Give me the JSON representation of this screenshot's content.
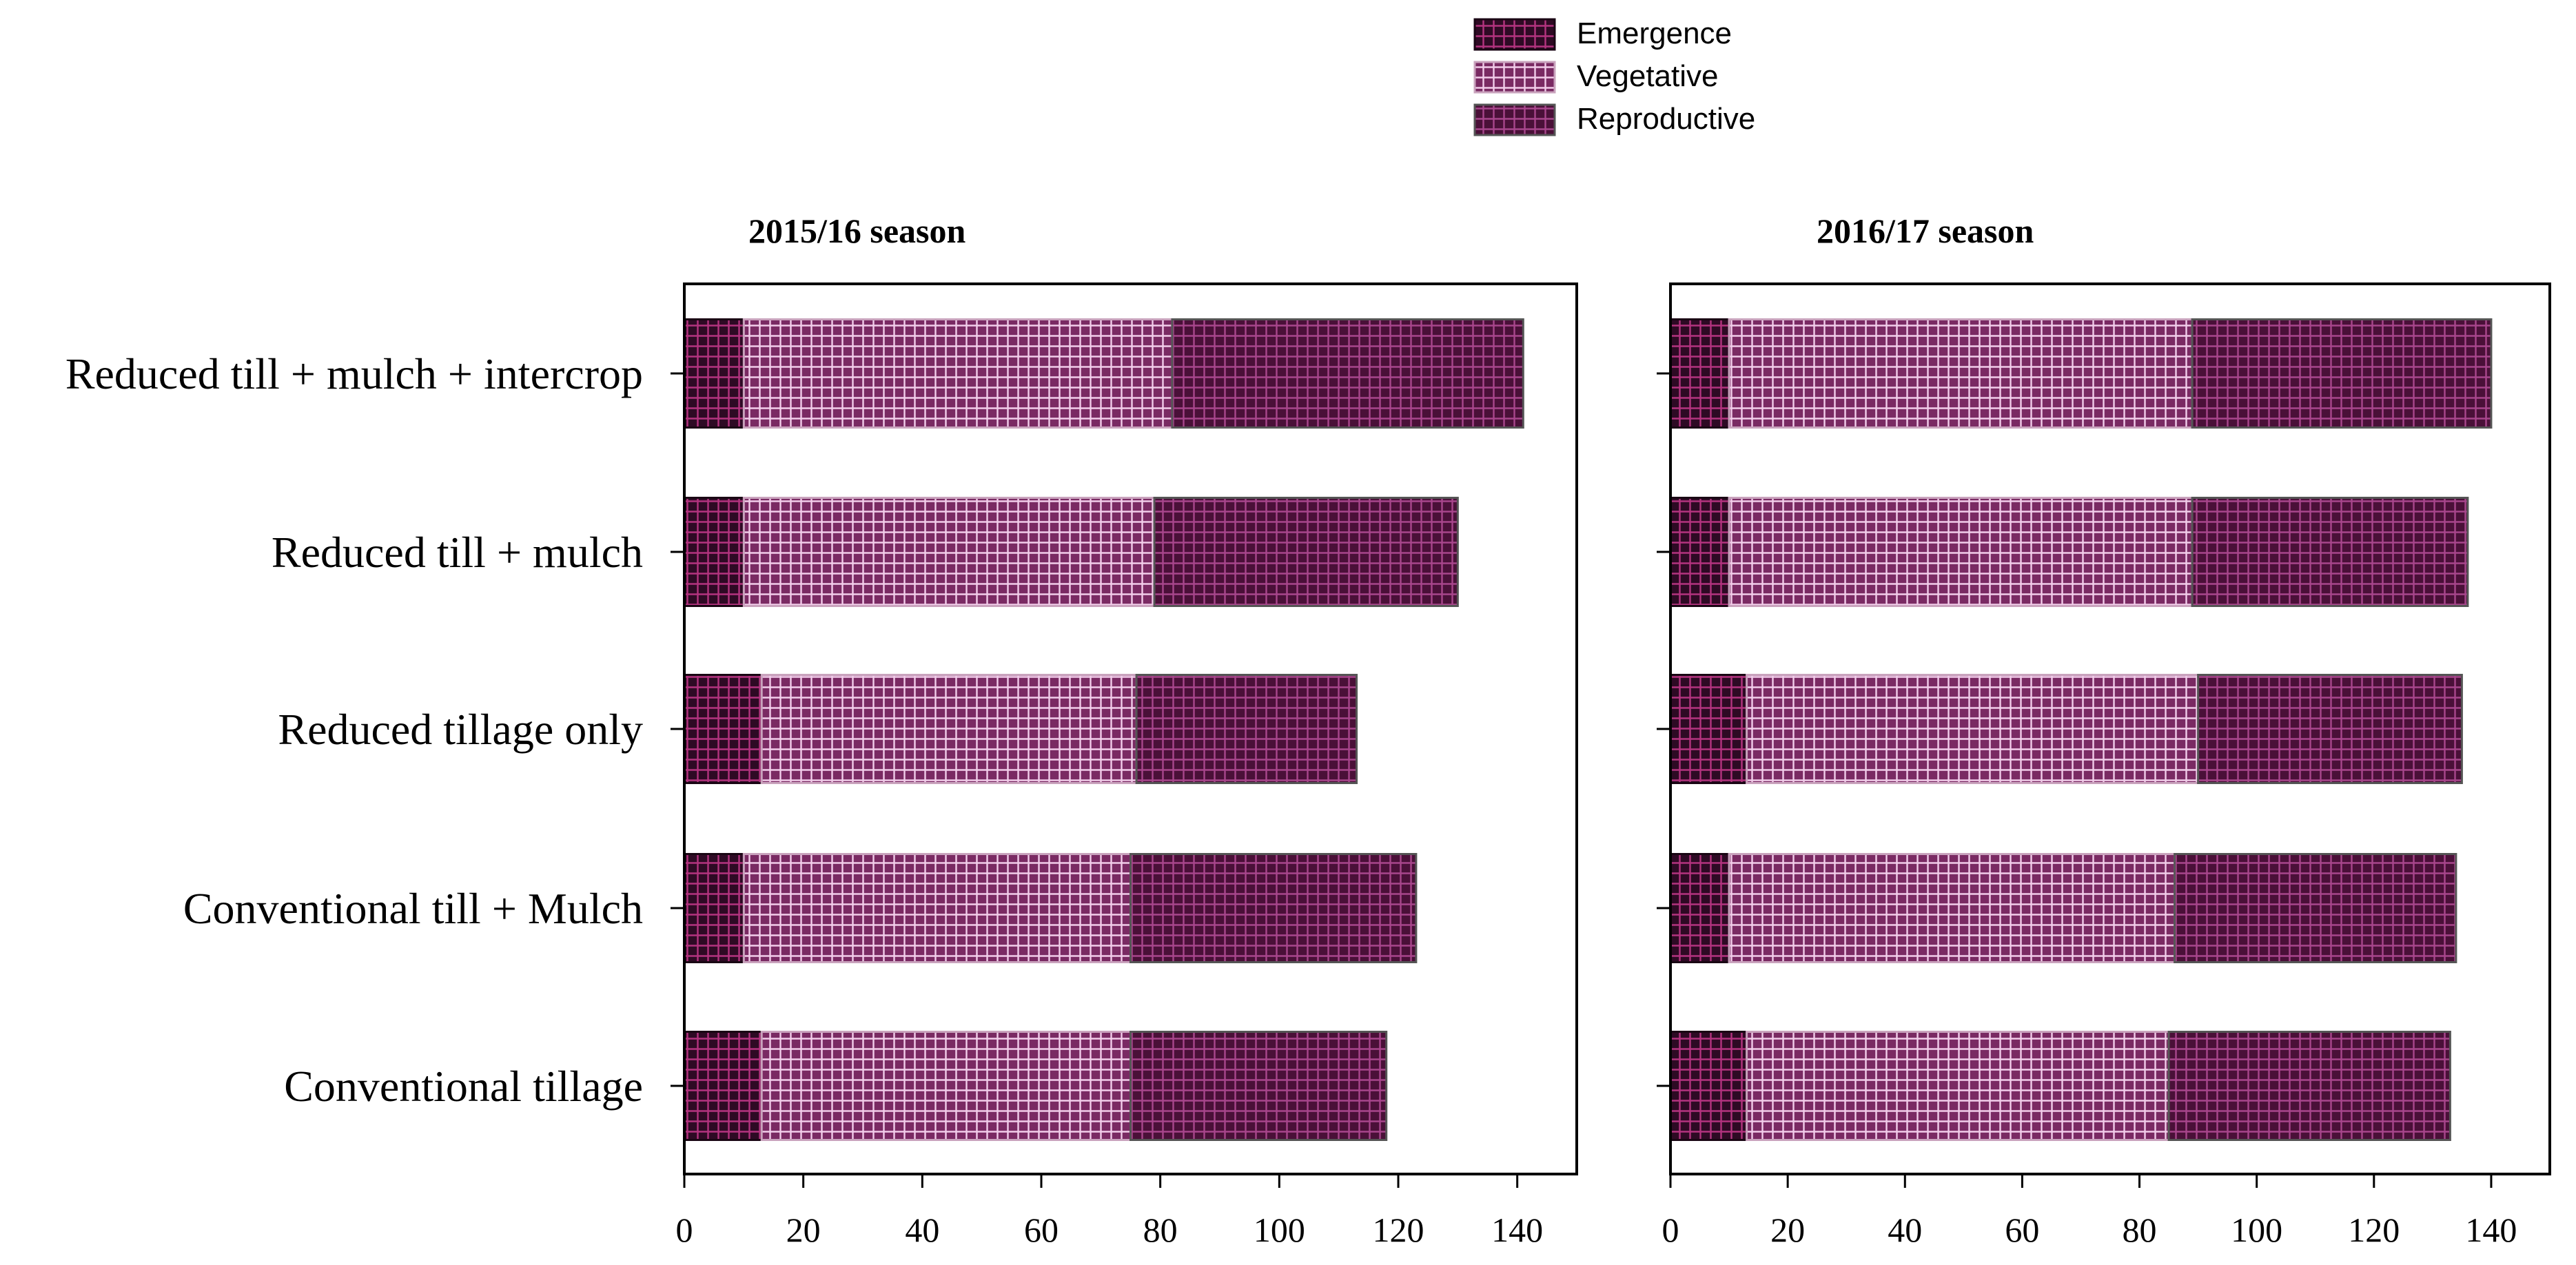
{
  "legend": {
    "placement": "top-center",
    "items": [
      {
        "label": "Emergence",
        "color": "#2e0a24",
        "grid": "#b3337f"
      },
      {
        "label": "Vegetative",
        "color": "#7a2a63",
        "grid": "#f2cdea"
      },
      {
        "label": "Reproductive",
        "color": "#4a1038",
        "grid": "#a8468c"
      }
    ]
  },
  "chart_data": [
    {
      "type": "bar",
      "orientation": "horizontal",
      "stacked": true,
      "title": "2015/16 season",
      "categories": [
        "Reduced till + mulch + intercrop",
        "Reduced till + mulch",
        "Reduced tillage only",
        "Conventional till + Mulch ",
        "Conventional tillage"
      ],
      "series": [
        {
          "name": "Emergence",
          "values": [
            10,
            10,
            13,
            10,
            13
          ]
        },
        {
          "name": "Vegetative",
          "values": [
            72,
            69,
            63,
            65,
            62
          ]
        },
        {
          "name": "Reproductive",
          "values": [
            59,
            51,
            37,
            48,
            43
          ]
        }
      ],
      "xlim": [
        0,
        150
      ],
      "xticks": [
        0,
        20,
        40,
        60,
        80,
        100,
        120,
        140
      ],
      "xlabel": "",
      "ylabel": "",
      "grid": false
    },
    {
      "type": "bar",
      "orientation": "horizontal",
      "stacked": true,
      "title": "2016/17 season",
      "categories": [
        "Reduced till + mulch + intercrop",
        "Reduced till + mulch",
        "Reduced tillage only",
        "Conventional till + Mulch ",
        "Conventional tillage"
      ],
      "series": [
        {
          "name": "Emergence",
          "values": [
            10,
            10,
            13,
            10,
            13
          ]
        },
        {
          "name": "Vegetative",
          "values": [
            79,
            79,
            77,
            76,
            72
          ]
        },
        {
          "name": "Reproductive",
          "values": [
            51,
            47,
            45,
            48,
            48
          ]
        }
      ],
      "xlim": [
        0,
        150
      ],
      "xticks": [
        0,
        20,
        40,
        60,
        80,
        100,
        120,
        140
      ],
      "xlabel": "",
      "ylabel": "",
      "grid": false
    }
  ]
}
